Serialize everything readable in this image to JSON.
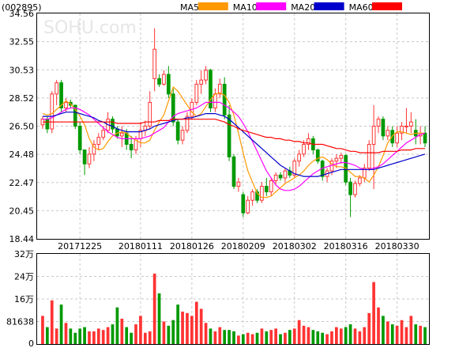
{
  "header": {
    "code": "(002895)"
  },
  "watermark": "SOHU.com",
  "legend": [
    {
      "label": "MA5",
      "color": "#ff9900"
    },
    {
      "label": "MA10",
      "color": "#ff00ff"
    },
    {
      "label": "MA20",
      "color": "#0000cc"
    },
    {
      "label": "MA60",
      "color": "#ff0000"
    }
  ],
  "colors": {
    "up": "#ff3333",
    "down": "#009900"
  },
  "chart_data": [
    {
      "type": "candlestick",
      "y_ticks": [
        "34.56",
        "32.55",
        "30.53",
        "28.52",
        "26.50",
        "24.48",
        "22.47",
        "20.45",
        "18.44"
      ],
      "ylim": [
        18.44,
        34.56
      ],
      "x_labels": [
        "20171225",
        "20180111",
        "20180126",
        "20180209",
        "20180302",
        "20180316",
        "20180330"
      ],
      "x_label_index": [
        8,
        21,
        32,
        43,
        54,
        65,
        76
      ],
      "candles": [
        [
          26.6,
          27.2,
          26.3,
          27.0
        ],
        [
          27.0,
          27.2,
          26.0,
          26.3
        ],
        [
          26.3,
          29.0,
          26.0,
          28.8
        ],
        [
          28.8,
          29.8,
          28.0,
          29.6
        ],
        [
          29.6,
          29.8,
          27.5,
          27.8
        ],
        [
          27.8,
          28.5,
          27.5,
          28.2
        ],
        [
          28.2,
          28.4,
          27.8,
          28.0
        ],
        [
          28.0,
          28.0,
          26.3,
          26.5
        ],
        [
          26.5,
          26.8,
          24.5,
          24.8
        ],
        [
          24.8,
          24.8,
          23.0,
          23.8
        ],
        [
          23.8,
          25.0,
          23.5,
          24.5
        ],
        [
          24.5,
          25.5,
          24.0,
          25.2
        ],
        [
          25.2,
          26.0,
          24.8,
          25.7
        ],
        [
          25.7,
          26.5,
          25.5,
          26.2
        ],
        [
          26.2,
          27.5,
          26.0,
          27.0
        ],
        [
          27.0,
          27.2,
          26.0,
          26.3
        ],
        [
          26.3,
          26.5,
          25.6,
          25.8
        ],
        [
          25.8,
          26.5,
          25.0,
          26.0
        ],
        [
          26.0,
          26.3,
          24.8,
          25.2
        ],
        [
          25.2,
          25.8,
          24.2,
          24.8
        ],
        [
          24.8,
          25.8,
          24.5,
          25.6
        ],
        [
          25.6,
          26.8,
          25.0,
          26.2
        ],
        [
          26.2,
          26.9,
          25.8,
          26.5
        ],
        [
          26.5,
          29.0,
          26.3,
          28.2
        ],
        [
          29.9,
          33.5,
          29.0,
          32.0
        ],
        [
          29.9,
          30.2,
          29.3,
          29.5
        ],
        [
          29.5,
          30.5,
          29.4,
          30.2
        ],
        [
          30.2,
          30.8,
          28.5,
          28.8
        ],
        [
          28.8,
          29.2,
          26.5,
          26.8
        ],
        [
          26.8,
          27.0,
          25.2,
          25.5
        ],
        [
          25.5,
          26.5,
          25.2,
          26.2
        ],
        [
          26.2,
          27.5,
          26.0,
          27.2
        ],
        [
          27.2,
          28.5,
          27.0,
          28.2
        ],
        [
          28.2,
          29.8,
          28.0,
          29.5
        ],
        [
          29.5,
          30.5,
          28.8,
          29.8
        ],
        [
          29.8,
          30.8,
          29.5,
          30.5
        ],
        [
          30.5,
          30.6,
          27.5,
          27.8
        ],
        [
          27.8,
          29.2,
          27.5,
          28.8
        ],
        [
          28.8,
          29.9,
          28.5,
          29.5
        ],
        [
          29.5,
          30.0,
          27.0,
          27.3
        ],
        [
          27.3,
          28.0,
          24.0,
          24.3
        ],
        [
          24.3,
          24.5,
          22.0,
          22.2
        ],
        [
          22.2,
          22.8,
          21.8,
          22.5
        ],
        [
          21.6,
          21.8,
          20.0,
          20.3
        ],
        [
          20.3,
          21.5,
          20.2,
          21.2
        ],
        [
          21.2,
          22.0,
          20.8,
          21.8
        ],
        [
          21.8,
          22.0,
          21.0,
          21.2
        ],
        [
          21.2,
          22.5,
          21.0,
          22.2
        ],
        [
          22.2,
          22.8,
          21.5,
          21.8
        ],
        [
          21.8,
          22.8,
          21.5,
          22.6
        ],
        [
          22.6,
          23.2,
          22.3,
          23.0
        ],
        [
          23.0,
          23.2,
          22.6,
          22.8
        ],
        [
          22.8,
          23.5,
          22.5,
          23.3
        ],
        [
          23.3,
          23.6,
          22.8,
          23.0
        ],
        [
          23.0,
          24.2,
          22.8,
          24.0
        ],
        [
          24.0,
          24.8,
          23.6,
          24.5
        ],
        [
          24.5,
          25.5,
          24.3,
          25.2
        ],
        [
          25.2,
          26.0,
          24.8,
          25.6
        ],
        [
          25.6,
          25.8,
          24.5,
          24.8
        ],
        [
          24.8,
          24.9,
          23.8,
          24.0
        ],
        [
          24.0,
          24.1,
          22.6,
          22.9
        ],
        [
          22.9,
          23.5,
          22.5,
          23.3
        ],
        [
          23.3,
          24.2,
          23.0,
          24.0
        ],
        [
          24.0,
          24.5,
          23.5,
          24.2
        ],
        [
          24.2,
          24.6,
          23.8,
          24.4
        ],
        [
          24.4,
          24.5,
          22.3,
          22.5
        ],
        [
          22.5,
          22.8,
          20.0,
          21.6
        ],
        [
          21.6,
          22.6,
          21.4,
          22.4
        ],
        [
          22.4,
          23.0,
          22.2,
          22.8
        ],
        [
          22.8,
          23.8,
          22.5,
          23.5
        ],
        [
          23.5,
          25.5,
          23.3,
          25.2
        ],
        [
          25.2,
          28.0,
          22.0,
          26.5
        ],
        [
          26.5,
          27.2,
          26.0,
          27.0
        ],
        [
          27.0,
          27.2,
          25.5,
          25.8
        ],
        [
          25.8,
          26.5,
          25.5,
          26.2
        ],
        [
          26.2,
          26.5,
          25.0,
          25.3
        ],
        [
          25.3,
          26.5,
          25.0,
          26.0
        ],
        [
          26.0,
          26.8,
          25.5,
          26.5
        ],
        [
          26.5,
          27.8,
          26.0,
          26.5
        ],
        [
          26.5,
          27.5,
          26.0,
          26.8
        ],
        [
          26.2,
          27.0,
          25.2,
          25.8
        ],
        [
          25.8,
          26.5,
          25.2,
          26.0
        ],
        [
          26.0,
          26.5,
          25.0,
          25.3
        ]
      ],
      "ma5": [
        27.4,
        27.3,
        27.4,
        27.7,
        28.0,
        28.3,
        28.1,
        27.7,
        27.2,
        26.6,
        25.6,
        25.0,
        24.8,
        24.9,
        25.4,
        25.8,
        26.0,
        26.1,
        26.0,
        25.7,
        25.5,
        25.3,
        25.3,
        25.5,
        26.2,
        26.8,
        27.3,
        28.3,
        29.3,
        29.0,
        28.5,
        28.0,
        27.5,
        27.2,
        27.4,
        27.9,
        28.4,
        28.8,
        28.9,
        28.7,
        28.2,
        27.3,
        26.0,
        24.6,
        23.3,
        22.5,
        21.7,
        21.4,
        21.4,
        21.5,
        21.8,
        22.1,
        22.4,
        22.6,
        22.8,
        23.0,
        23.3,
        23.7,
        24.0,
        24.2,
        24.3,
        24.1,
        23.8,
        23.6,
        23.6,
        23.5,
        23.2,
        22.9,
        22.9,
        22.8,
        22.5,
        23.0,
        23.6,
        24.4,
        25.3,
        25.8,
        26.1,
        26.1,
        26.0,
        25.9,
        26.0,
        26.0,
        26.0
      ],
      "ma10": [
        27.0,
        27.0,
        27.1,
        27.3,
        27.5,
        27.7,
        27.8,
        27.8,
        27.7,
        27.5,
        27.3,
        27.0,
        26.7,
        26.4,
        26.1,
        25.9,
        25.7,
        25.6,
        25.6,
        25.6,
        25.6,
        25.6,
        25.7,
        25.8,
        26.0,
        26.2,
        26.4,
        26.8,
        27.2,
        27.4,
        27.5,
        27.6,
        27.7,
        27.8,
        28.0,
        28.2,
        28.2,
        28.2,
        28.2,
        28.0,
        27.8,
        27.5,
        27.2,
        26.7,
        26.1,
        25.4,
        24.7,
        24.0,
        23.3,
        22.8,
        22.3,
        22.0,
        21.9,
        21.9,
        22.0,
        22.2,
        22.5,
        22.8,
        23.1,
        23.3,
        23.5,
        23.6,
        23.7,
        23.8,
        23.9,
        23.9,
        23.8,
        23.7,
        23.5,
        23.4,
        23.4,
        23.5,
        23.6,
        23.8,
        24.1,
        24.4,
        24.7,
        25.0,
        25.3,
        25.5,
        25.7,
        25.9,
        26.0
      ],
      "ma20": [
        27.2,
        27.2,
        27.2,
        27.3,
        27.4,
        27.5,
        27.5,
        27.5,
        27.4,
        27.3,
        27.2,
        27.1,
        26.9,
        26.8,
        26.6,
        26.5,
        26.3,
        26.2,
        26.1,
        26.1,
        26.1,
        26.1,
        26.2,
        26.3,
        26.5,
        26.6,
        26.7,
        26.8,
        26.9,
        27.0,
        27.0,
        27.1,
        27.1,
        27.2,
        27.3,
        27.4,
        27.4,
        27.4,
        27.3,
        27.2,
        27.0,
        26.7,
        26.4,
        26.1,
        25.8,
        25.5,
        25.2,
        24.9,
        24.6,
        24.3,
        24.0,
        23.7,
        23.5,
        23.3,
        23.1,
        23.0,
        22.9,
        22.9,
        22.9,
        22.9,
        23.0,
        23.1,
        23.2,
        23.3,
        23.4,
        23.4,
        23.4,
        23.4,
        23.4,
        23.4,
        23.4,
        23.4,
        23.5,
        23.6,
        23.7,
        23.8,
        23.9,
        24.0,
        24.1,
        24.2,
        24.3,
        24.4,
        24.5
      ],
      "ma60": [
        26.8,
        26.8,
        26.8,
        26.8,
        26.8,
        26.8,
        26.8,
        26.8,
        26.8,
        26.8,
        26.8,
        26.8,
        26.8,
        26.8,
        26.8,
        26.8,
        26.7,
        26.7,
        26.7,
        26.7,
        26.7,
        26.7,
        26.8,
        26.8,
        26.8,
        26.9,
        26.9,
        26.9,
        27.0,
        27.0,
        27.0,
        27.0,
        27.0,
        27.0,
        27.0,
        27.0,
        27.0,
        27.0,
        26.9,
        26.8,
        26.6,
        26.5,
        26.3,
        26.2,
        26.1,
        26.0,
        25.9,
        25.8,
        25.7,
        25.7,
        25.6,
        25.6,
        25.5,
        25.5,
        25.4,
        25.4,
        25.3,
        25.3,
        25.2,
        25.2,
        25.2,
        25.1,
        25.0,
        24.9,
        24.9,
        24.8,
        24.7,
        24.7,
        24.6,
        24.6,
        24.6,
        24.6,
        24.6,
        24.7,
        24.7,
        24.7,
        24.7,
        24.8,
        24.8,
        24.8,
        24.9,
        24.9,
        24.9
      ]
    },
    {
      "type": "bar",
      "y_ticks": [
        "32万",
        "24万",
        "16万",
        "81638",
        "0"
      ],
      "ylim": [
        0,
        320000
      ],
      "volumes": [
        100000,
        60000,
        155000,
        55000,
        140000,
        75000,
        55000,
        40000,
        55000,
        60000,
        45000,
        45000,
        55000,
        50000,
        60000,
        70000,
        130000,
        90000,
        60000,
        40000,
        70000,
        100000,
        40000,
        45000,
        250000,
        180000,
        80000,
        65000,
        85000,
        140000,
        115000,
        110000,
        100000,
        150000,
        125000,
        75000,
        55000,
        45000,
        60000,
        50000,
        50000,
        45000,
        30000,
        35000,
        40000,
        35000,
        40000,
        55000,
        45000,
        50000,
        55000,
        35000,
        40000,
        50000,
        55000,
        85000,
        65000,
        60000,
        50000,
        45000,
        40000,
        35000,
        45000,
        60000,
        55000,
        60000,
        70000,
        55000,
        45000,
        60000,
        110000,
        220000,
        130000,
        100000,
        80000,
        70000,
        65000,
        85000,
        60000,
        100000,
        70000,
        65000,
        60000
      ]
    }
  ]
}
